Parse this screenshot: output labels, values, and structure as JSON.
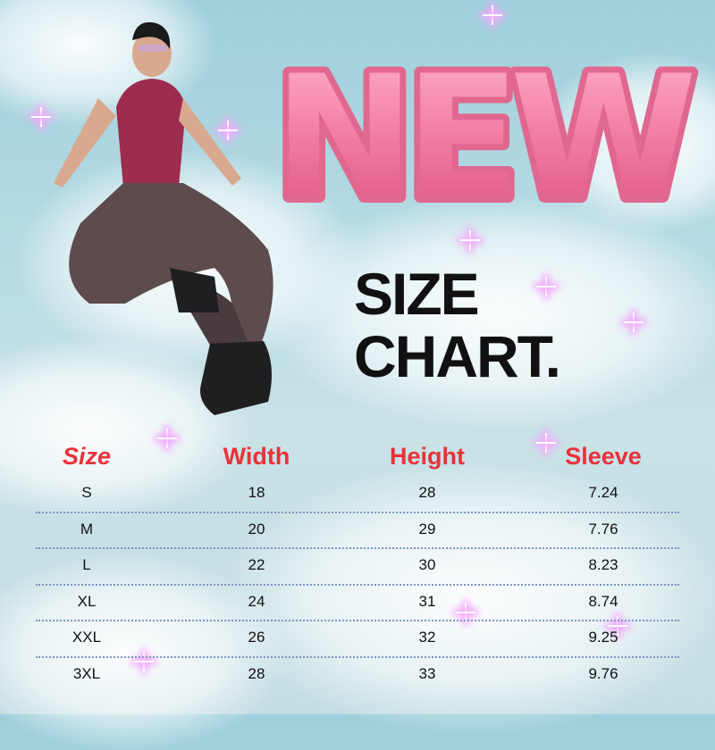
{
  "headline": "NEW",
  "title_line1": "SIZE",
  "title_line2": "CHART.",
  "colors": {
    "accent": "#e8323a",
    "bubble_pink": "#f27ba3",
    "sky": "#a9d4df"
  },
  "table": {
    "headers": [
      "Size",
      "Width",
      "Height",
      "Sleeve"
    ],
    "rows": [
      [
        "S",
        "18",
        "28",
        "7.24"
      ],
      [
        "M",
        "20",
        "29",
        "7.76"
      ],
      [
        "L",
        "22",
        "30",
        "8.23"
      ],
      [
        "XL",
        "24",
        "31",
        "8.74"
      ],
      [
        "XXL",
        "26",
        "32",
        "9.25"
      ],
      [
        "3XL",
        "28",
        "33",
        "9.76"
      ]
    ]
  }
}
